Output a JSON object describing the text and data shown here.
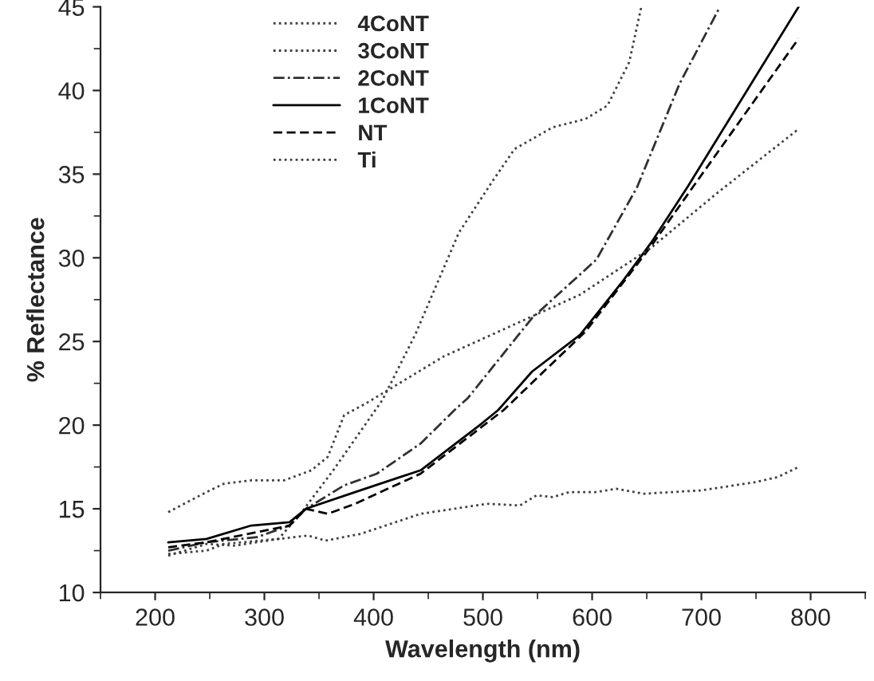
{
  "chart_data": {
    "type": "line",
    "xlabel": "Wavelength (nm)",
    "ylabel": "% Reflectance",
    "xlim": [
      150,
      850
    ],
    "xticks": [
      200,
      300,
      400,
      500,
      600,
      700,
      800
    ],
    "ylim": [
      10,
      45
    ],
    "yticks": [
      10,
      15,
      20,
      25,
      30,
      35,
      40,
      45
    ],
    "grid": false,
    "legend": "top left",
    "marker": "none",
    "series": [
      {
        "name": "4CoNT",
        "color": "#404040",
        "line_style": "dotted",
        "x": [
          212,
          247,
          273,
          313,
          340,
          356,
          388,
          443,
          504,
          534,
          549,
          564,
          579,
          604,
          622,
          647,
          700,
          750,
          770,
          789
        ],
        "values": [
          12.2,
          12.9,
          12.8,
          13.2,
          13.4,
          13.1,
          13.5,
          14.7,
          15.3,
          15.2,
          15.8,
          15.7,
          16.0,
          16.0,
          16.2,
          15.9,
          16.1,
          16.6,
          16.9,
          17.5
        ]
      },
      {
        "name": "3CoNT",
        "color": "#404040",
        "line_style": "dotted",
        "x": [
          212,
          247,
          263,
          313,
          333,
          363,
          408,
          438,
          478,
          509,
          529,
          564,
          594,
          614,
          634,
          645
        ],
        "values": [
          12.3,
          12.5,
          12.9,
          13.2,
          14.7,
          17.3,
          21.5,
          25.4,
          31.5,
          34.6,
          36.5,
          37.8,
          38.3,
          39.1,
          41.7,
          45.0
        ]
      },
      {
        "name": "2CoNT",
        "color": "#303030",
        "line_style": "dashdot",
        "x": [
          212,
          247,
          293,
          323,
          338,
          373,
          403,
          443,
          474,
          486,
          545,
          604,
          641,
          680,
          717
        ],
        "values": [
          12.5,
          13.0,
          13.3,
          14.0,
          15.0,
          16.4,
          17.1,
          18.9,
          20.9,
          21.6,
          26.4,
          29.9,
          34.2,
          40.4,
          45.0
        ]
      },
      {
        "name": "1CoNT",
        "color": "#000000",
        "line_style": "solid",
        "x": [
          212,
          247,
          288,
          323,
          338,
          383,
          443,
          499,
          514,
          545,
          589,
          628,
          654,
          688,
          789
        ],
        "values": [
          13.0,
          13.2,
          14.0,
          14.2,
          15.0,
          16.0,
          17.3,
          20.1,
          20.9,
          23.2,
          25.4,
          28.6,
          30.9,
          34.3,
          45.0
        ]
      },
      {
        "name": "NT",
        "color": "#000000",
        "line_style": "dashed",
        "x": [
          212,
          247,
          293,
          323,
          338,
          358,
          383,
          443,
          499,
          519,
          594,
          654,
          693,
          789
        ],
        "values": [
          12.7,
          13.0,
          13.6,
          14.0,
          15.0,
          14.7,
          15.3,
          17.1,
          19.9,
          20.9,
          25.6,
          30.7,
          34.3,
          43.1
        ]
      },
      {
        "name": "Ti",
        "color": "#404040",
        "line_style": "dotted",
        "x": [
          212,
          247,
          263,
          288,
          318,
          343,
          358,
          373,
          393,
          464,
          589,
          654,
          715,
          789
        ],
        "values": [
          14.8,
          16.0,
          16.5,
          16.7,
          16.7,
          17.3,
          18.1,
          20.6,
          21.3,
          24.1,
          27.8,
          30.6,
          33.9,
          37.7
        ]
      }
    ]
  }
}
